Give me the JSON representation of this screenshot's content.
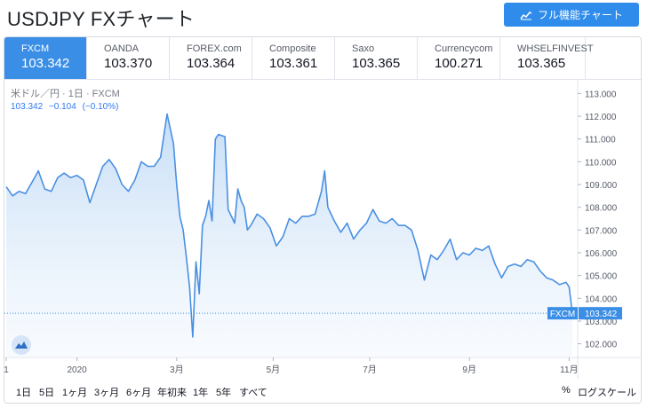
{
  "title": "USDJPY FXチャート",
  "full_chart_button": "フル機能チャート",
  "tabs": [
    {
      "name": "FXCM",
      "value": "103.342",
      "active": true
    },
    {
      "name": "OANDA",
      "value": "103.370",
      "active": false
    },
    {
      "name": "FOREX.com",
      "value": "103.364",
      "active": false
    },
    {
      "name": "Composite",
      "value": "103.361",
      "active": false
    },
    {
      "name": "Saxo",
      "value": "103.365",
      "active": false
    },
    {
      "name": "Currencycom",
      "value": "100.271",
      "active": false
    },
    {
      "name": "WHSELFINVEST",
      "value": "103.365",
      "active": false
    }
  ],
  "legend": {
    "title": "米ドル／円 · 1日 · FXCM",
    "price": "103.342",
    "change": "−0.104",
    "change_pct": "(−0.10%)"
  },
  "ranges": [
    "1日",
    "5日",
    "1ヶ月",
    "3ヶ月",
    "6ヶ月",
    "年初来",
    "1年",
    "5年",
    "すべて"
  ],
  "percent_label": "%",
  "log_scale_label": "ログスケール",
  "colors": {
    "line": "#4a90e2",
    "accent": "#2f8ceb",
    "last_price": "#3a8ee6"
  },
  "chart_data": {
    "type": "area",
    "series": [
      {
        "name": "FXCM"
      }
    ],
    "ylim": [
      101.4,
      113.6
    ],
    "yticks": [
      102,
      103,
      104,
      105,
      106,
      107,
      108,
      109,
      110,
      111,
      112,
      113
    ],
    "ytick_labels": [
      "102.000",
      "103.000",
      "104.000",
      "105.000",
      "106.000",
      "107.000",
      "108.000",
      "109.000",
      "110.000",
      "111.000",
      "112.000",
      "113.000"
    ],
    "x_ticks": [
      {
        "label": "1",
        "x": 0
      },
      {
        "label": "2020",
        "x": 22
      },
      {
        "label": "3月",
        "x": 53
      },
      {
        "label": "5月",
        "x": 83
      },
      {
        "label": "7月",
        "x": 113
      },
      {
        "label": "9月",
        "x": 144
      },
      {
        "label": "11月",
        "x": 175
      }
    ],
    "last_value_label": "FXCM",
    "last_value": "103.342",
    "last_price": 103.342,
    "points": [
      [
        0,
        108.9
      ],
      [
        2,
        108.5
      ],
      [
        4,
        108.7
      ],
      [
        6,
        108.6
      ],
      [
        8,
        109.1
      ],
      [
        10,
        109.6
      ],
      [
        12,
        108.8
      ],
      [
        14,
        108.7
      ],
      [
        16,
        109.3
      ],
      [
        18,
        109.5
      ],
      [
        20,
        109.3
      ],
      [
        22,
        109.4
      ],
      [
        24,
        109.2
      ],
      [
        26,
        108.2
      ],
      [
        28,
        109.0
      ],
      [
        30,
        109.8
      ],
      [
        32,
        110.1
      ],
      [
        34,
        109.7
      ],
      [
        36,
        109.0
      ],
      [
        38,
        108.7
      ],
      [
        40,
        109.2
      ],
      [
        42,
        110.0
      ],
      [
        44,
        109.8
      ],
      [
        46,
        109.8
      ],
      [
        48,
        110.2
      ],
      [
        50,
        112.1
      ],
      [
        52,
        110.8
      ],
      [
        53,
        109.0
      ],
      [
        54,
        107.6
      ],
      [
        55,
        107.0
      ],
      [
        56,
        105.8
      ],
      [
        57,
        104.5
      ],
      [
        58,
        102.3
      ],
      [
        59,
        105.6
      ],
      [
        60,
        104.2
      ],
      [
        61,
        107.2
      ],
      [
        62,
        107.6
      ],
      [
        63,
        108.3
      ],
      [
        64,
        107.4
      ],
      [
        65,
        111.0
      ],
      [
        66,
        111.2
      ],
      [
        68,
        111.1
      ],
      [
        69,
        107.9
      ],
      [
        70,
        107.6
      ],
      [
        71,
        107.3
      ],
      [
        72,
        108.8
      ],
      [
        73,
        108.3
      ],
      [
        74,
        108.0
      ],
      [
        75,
        107.0
      ],
      [
        76,
        107.2
      ],
      [
        78,
        107.7
      ],
      [
        80,
        107.5
      ],
      [
        82,
        107.1
      ],
      [
        84,
        106.3
      ],
      [
        86,
        106.7
      ],
      [
        88,
        107.5
      ],
      [
        90,
        107.3
      ],
      [
        92,
        107.6
      ],
      [
        94,
        107.6
      ],
      [
        96,
        107.7
      ],
      [
        98,
        108.7
      ],
      [
        99,
        109.6
      ],
      [
        100,
        108.0
      ],
      [
        102,
        107.4
      ],
      [
        104,
        106.9
      ],
      [
        106,
        107.3
      ],
      [
        108,
        106.6
      ],
      [
        110,
        107.0
      ],
      [
        112,
        107.3
      ],
      [
        114,
        107.9
      ],
      [
        116,
        107.4
      ],
      [
        118,
        107.3
      ],
      [
        120,
        107.5
      ],
      [
        122,
        107.2
      ],
      [
        124,
        107.2
      ],
      [
        126,
        107.0
      ],
      [
        128,
        106.1
      ],
      [
        130,
        104.8
      ],
      [
        132,
        105.9
      ],
      [
        134,
        105.7
      ],
      [
        136,
        106.1
      ],
      [
        138,
        106.6
      ],
      [
        140,
        105.7
      ],
      [
        142,
        106.0
      ],
      [
        144,
        105.9
      ],
      [
        146,
        106.2
      ],
      [
        148,
        106.1
      ],
      [
        150,
        106.3
      ],
      [
        152,
        105.5
      ],
      [
        154,
        104.9
      ],
      [
        156,
        105.4
      ],
      [
        158,
        105.5
      ],
      [
        160,
        105.4
      ],
      [
        162,
        105.7
      ],
      [
        164,
        105.6
      ],
      [
        166,
        105.2
      ],
      [
        168,
        104.9
      ],
      [
        170,
        104.8
      ],
      [
        172,
        104.6
      ],
      [
        174,
        104.7
      ],
      [
        175,
        104.5
      ],
      [
        176,
        103.342
      ]
    ]
  }
}
